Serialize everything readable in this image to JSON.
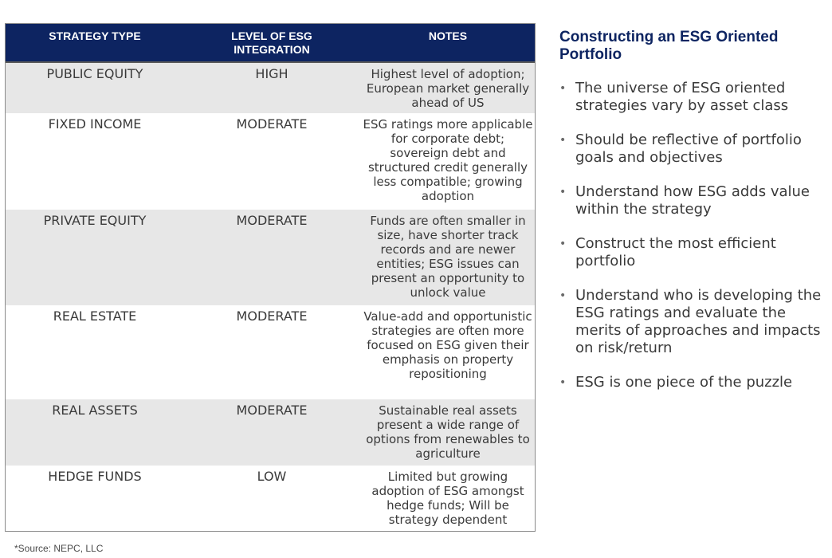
{
  "table": {
    "headers": [
      "STRATEGY TYPE",
      "LEVEL OF ESG INTEGRATION",
      "NOTES"
    ],
    "rows": [
      {
        "strategy": "PUBLIC EQUITY",
        "level": "HIGH",
        "notes": "Highest level of adoption; European market generally ahead of US"
      },
      {
        "strategy": "FIXED INCOME",
        "level": "MODERATE",
        "notes": "ESG ratings more applicable for corporate debt; sovereign debt and structured credit generally less compatible; growing adoption"
      },
      {
        "strategy": "PRIVATE EQUITY",
        "level": "MODERATE",
        "notes": "Funds are often smaller in size, have shorter track records and are newer entities; ESG issues can present an opportunity to unlock value"
      },
      {
        "strategy": "REAL ESTATE",
        "level": "MODERATE",
        "notes": "Value-add and opportunistic strategies are often more focused on ESG given their emphasis on property repositioning"
      },
      {
        "strategy": "REAL ASSETS",
        "level": "MODERATE",
        "notes": "Sustainable real assets present a wide range of options from renewables to agriculture"
      },
      {
        "strategy": "HEDGE FUNDS",
        "level": "LOW",
        "notes": "Limited but growing adoption of ESG amongst hedge funds; Will be strategy dependent"
      }
    ]
  },
  "sidebar": {
    "title": "Constructing an ESG Oriented Portfolio",
    "bullets": [
      "The universe of ESG oriented strategies vary by asset class",
      "Should be reflective of portfolio goals and objectives",
      "Understand how ESG adds value within the strategy",
      "Construct the most efficient portfolio",
      "Understand who is developing the ESG ratings and evaluate the merits of approaches and impacts on risk/return",
      "ESG is one piece of the puzzle"
    ]
  },
  "footer": {
    "source": "*Source: NEPC, LLC"
  },
  "colors": {
    "header_bg": "#0d2461",
    "row_shade": "#e7e7e7",
    "title_color": "#0d2461"
  }
}
